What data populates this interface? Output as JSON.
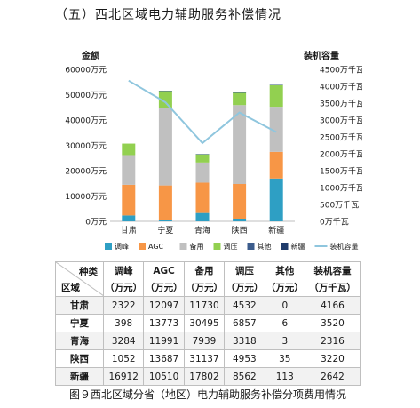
{
  "heading": "（五）西北区域电力辅助服务补偿情况",
  "chart_data": {
    "type": "bar",
    "stacked": true,
    "categories": [
      "甘肃",
      "宁夏",
      "青海",
      "陕西",
      "新疆"
    ],
    "left_axis": {
      "label": "金额",
      "ylim": [
        0,
        60000
      ],
      "ticks": [
        0,
        10000,
        20000,
        30000,
        40000,
        50000,
        60000
      ],
      "tick_labels": [
        "0万元",
        "10000万元",
        "20000万元",
        "30000万元",
        "40000万元",
        "50000万元",
        "60000万元"
      ]
    },
    "right_axis": {
      "label": "装机容量",
      "ylim": [
        0,
        4500
      ],
      "ticks": [
        0,
        500,
        1000,
        1500,
        2000,
        2500,
        3000,
        3500,
        4000,
        4500
      ],
      "tick_labels": [
        "0万千瓦",
        "500万千瓦",
        "1000万千瓦",
        "1500万千瓦",
        "2000万千瓦",
        "2500万千瓦",
        "3000万千瓦",
        "3500万千瓦",
        "4000万千瓦",
        "4500万千瓦"
      ]
    },
    "series": [
      {
        "name": "调峰",
        "axis": "left",
        "color": "#2e9fc4",
        "values": [
          2322,
          398,
          3284,
          1052,
          16912
        ]
      },
      {
        "name": "AGC",
        "axis": "left",
        "color": "#f79646",
        "values": [
          12097,
          13773,
          11991,
          13687,
          10510
        ]
      },
      {
        "name": "备用",
        "axis": "left",
        "color": "#c0c0c0",
        "values": [
          11730,
          30495,
          7939,
          31137,
          17802
        ]
      },
      {
        "name": "调压",
        "axis": "left",
        "color": "#92d050",
        "values": [
          4532,
          6857,
          3318,
          4953,
          8562
        ]
      },
      {
        "name": "其他",
        "axis": "left",
        "color": "#3c5c8c",
        "values": [
          0,
          6,
          3,
          35,
          113
        ]
      },
      {
        "name": "新疆",
        "legend_only": true,
        "color": "#1f3b6b"
      },
      {
        "name": "装机容量",
        "axis": "right",
        "type": "line",
        "color": "#8fc6de",
        "values": [
          4166,
          3520,
          2316,
          3220,
          2642
        ]
      }
    ],
    "grid": false,
    "legend": "bottom"
  },
  "table": {
    "corner_top": "种类",
    "corner_bottom": "区域",
    "headers": [
      {
        "name": "调峰",
        "unit": "（万元）"
      },
      {
        "name": "AGC",
        "unit": "（万元）"
      },
      {
        "name": "备用",
        "unit": "（万元）"
      },
      {
        "name": "调压",
        "unit": "（万元）"
      },
      {
        "name": "其他",
        "unit": "（万元）"
      },
      {
        "name": "装机容量",
        "unit": "（万千瓦）"
      }
    ],
    "rows": [
      {
        "region": "甘肃",
        "values": [
          "2322",
          "12097",
          "11730",
          "4532",
          "0",
          "4166"
        ]
      },
      {
        "region": "宁夏",
        "values": [
          "398",
          "13773",
          "30495",
          "6857",
          "6",
          "3520"
        ]
      },
      {
        "region": "青海",
        "values": [
          "3284",
          "11991",
          "7939",
          "3318",
          "3",
          "2316"
        ]
      },
      {
        "region": "陕西",
        "values": [
          "1052",
          "13687",
          "31137",
          "4953",
          "35",
          "3220"
        ]
      },
      {
        "region": "新疆",
        "values": [
          "16912",
          "10510",
          "17802",
          "8562",
          "113",
          "2642"
        ]
      }
    ]
  },
  "caption": "图９西北区域分省（地区）电力辅助服务补偿分项费用情况"
}
